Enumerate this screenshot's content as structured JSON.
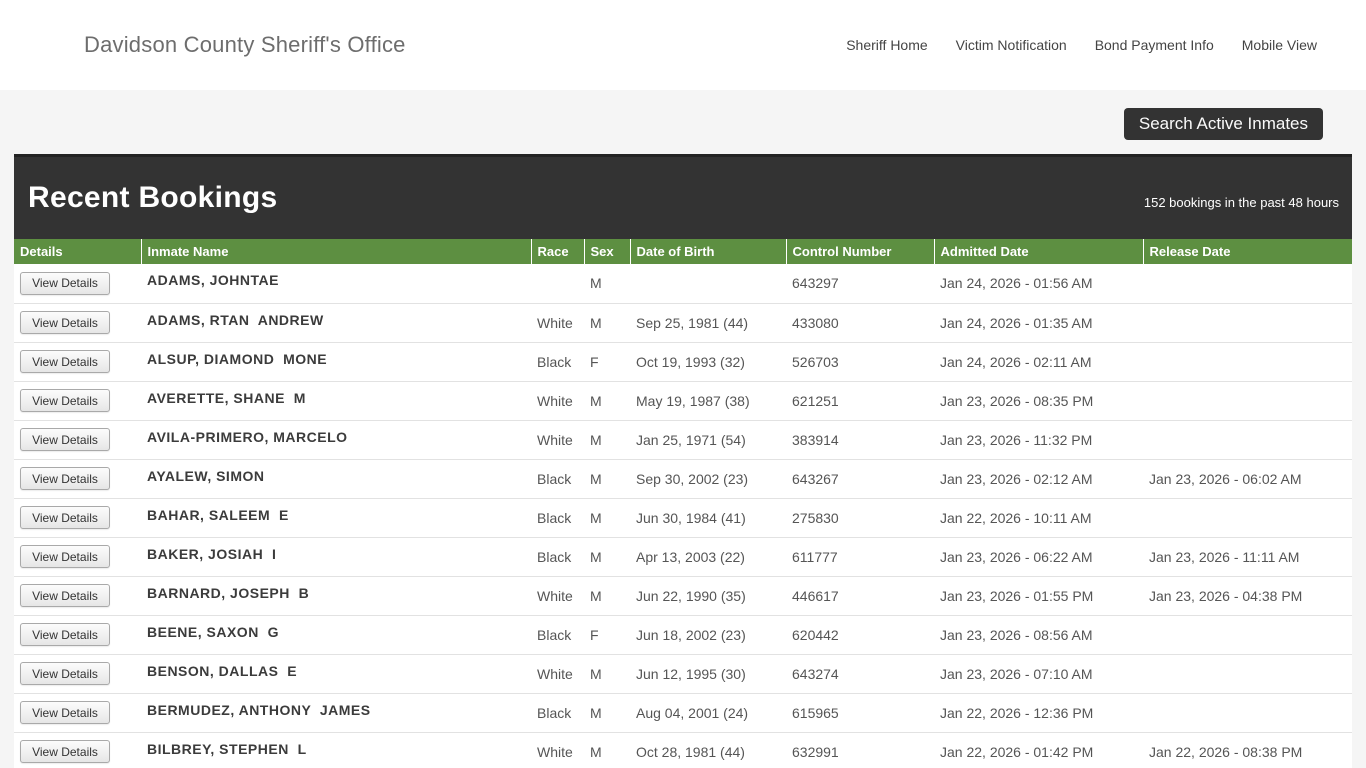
{
  "header": {
    "title": "Davidson County Sheriff's Office",
    "nav": [
      {
        "label": "Sheriff Home"
      },
      {
        "label": "Victim Notification"
      },
      {
        "label": "Bond Payment Info"
      },
      {
        "label": "Mobile View"
      }
    ]
  },
  "search_button_label": "Search Active Inmates",
  "bookings": {
    "title": "Recent Bookings",
    "subtitle": "152 bookings in the past 48 hours",
    "view_details_label": "View Details",
    "columns": [
      "Details",
      "Inmate Name",
      "Race",
      "Sex",
      "Date of Birth",
      "Control Number",
      "Admitted Date",
      "Release Date"
    ],
    "rows": [
      {
        "name": "ADAMS, JOHNTAE",
        "race": "",
        "sex": "M",
        "dob": "",
        "control": "643297",
        "admitted": "Jan 24, 2026 - 01:56 AM",
        "released": ""
      },
      {
        "name": "ADAMS, RTAN  ANDREW",
        "race": "White",
        "sex": "M",
        "dob": "Sep 25, 1981 (44)",
        "control": "433080",
        "admitted": "Jan 24, 2026 - 01:35 AM",
        "released": ""
      },
      {
        "name": "ALSUP, DIAMOND  MONE",
        "race": "Black",
        "sex": "F",
        "dob": "Oct 19, 1993 (32)",
        "control": "526703",
        "admitted": "Jan 24, 2026 - 02:11 AM",
        "released": ""
      },
      {
        "name": "AVERETTE, SHANE  M",
        "race": "White",
        "sex": "M",
        "dob": "May 19, 1987 (38)",
        "control": "621251",
        "admitted": "Jan 23, 2026 - 08:35 PM",
        "released": ""
      },
      {
        "name": "AVILA-PRIMERO, MARCELO",
        "race": "White",
        "sex": "M",
        "dob": "Jan 25, 1971 (54)",
        "control": "383914",
        "admitted": "Jan 23, 2026 - 11:32 PM",
        "released": ""
      },
      {
        "name": "AYALEW, SIMON",
        "race": "Black",
        "sex": "M",
        "dob": "Sep 30, 2002 (23)",
        "control": "643267",
        "admitted": "Jan 23, 2026 - 02:12 AM",
        "released": "Jan 23, 2026 - 06:02 AM"
      },
      {
        "name": "BAHAR, SALEEM  E",
        "race": "Black",
        "sex": "M",
        "dob": "Jun 30, 1984 (41)",
        "control": "275830",
        "admitted": "Jan 22, 2026 - 10:11 AM",
        "released": ""
      },
      {
        "name": "BAKER, JOSIAH  I",
        "race": "Black",
        "sex": "M",
        "dob": "Apr 13, 2003 (22)",
        "control": "611777",
        "admitted": "Jan 23, 2026 - 06:22 AM",
        "released": "Jan 23, 2026 - 11:11 AM"
      },
      {
        "name": "BARNARD, JOSEPH  B",
        "race": "White",
        "sex": "M",
        "dob": "Jun 22, 1990 (35)",
        "control": "446617",
        "admitted": "Jan 23, 2026 - 01:55 PM",
        "released": "Jan 23, 2026 - 04:38 PM"
      },
      {
        "name": "BEENE, SAXON  G",
        "race": "Black",
        "sex": "F",
        "dob": "Jun 18, 2002 (23)",
        "control": "620442",
        "admitted": "Jan 23, 2026 - 08:56 AM",
        "released": ""
      },
      {
        "name": "BENSON, DALLAS  E",
        "race": "White",
        "sex": "M",
        "dob": "Jun 12, 1995 (30)",
        "control": "643274",
        "admitted": "Jan 23, 2026 - 07:10 AM",
        "released": ""
      },
      {
        "name": "BERMUDEZ, ANTHONY  JAMES",
        "race": "Black",
        "sex": "M",
        "dob": "Aug 04, 2001 (24)",
        "control": "615965",
        "admitted": "Jan 22, 2026 - 12:36 PM",
        "released": ""
      },
      {
        "name": "BILBREY, STEPHEN  L",
        "race": "White",
        "sex": "M",
        "dob": "Oct 28, 1981 (44)",
        "control": "632991",
        "admitted": "Jan 22, 2026 - 01:42 PM",
        "released": "Jan 22, 2026 - 08:38 PM"
      }
    ]
  },
  "colors": {
    "accent_green": "#5d8f41",
    "dark_header": "#333333",
    "page_background": "#f5f5f5"
  }
}
